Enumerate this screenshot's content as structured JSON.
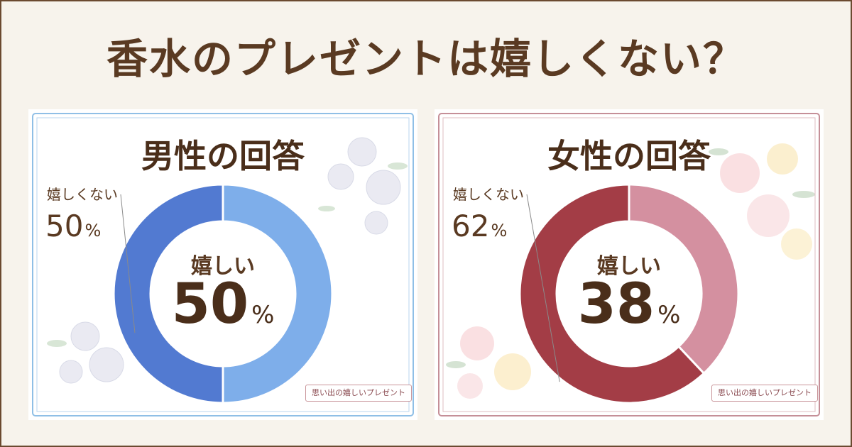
{
  "title": "香水のプレゼントは嬉しくない？",
  "credit": "思い出の嬉しいプレゼント",
  "colors": {
    "background": "#f7f3ec",
    "title_text": "#5a3a22",
    "male_frame": "#8fbfe6",
    "female_frame": "#c58f98"
  },
  "chart_data": [
    {
      "type": "pie",
      "title": "男性の回答",
      "slices": [
        {
          "label": "嬉しい",
          "value": 50,
          "color": "#7eaeea"
        },
        {
          "label": "嬉しくない",
          "value": 50,
          "color": "#527ad1"
        }
      ],
      "center": {
        "label": "嬉しい",
        "value": "50",
        "unit": "%"
      },
      "side": {
        "label": "嬉しくない",
        "value": "50",
        "unit": "%"
      }
    },
    {
      "type": "pie",
      "title": "女性の回答",
      "slices": [
        {
          "label": "嬉しい",
          "value": 38,
          "color": "#d490a0"
        },
        {
          "label": "嬉しくない",
          "value": 62,
          "color": "#a33d46"
        }
      ],
      "center": {
        "label": "嬉しい",
        "value": "38",
        "unit": "%"
      },
      "side": {
        "label": "嬉しくない",
        "value": "62",
        "unit": "%"
      }
    }
  ]
}
